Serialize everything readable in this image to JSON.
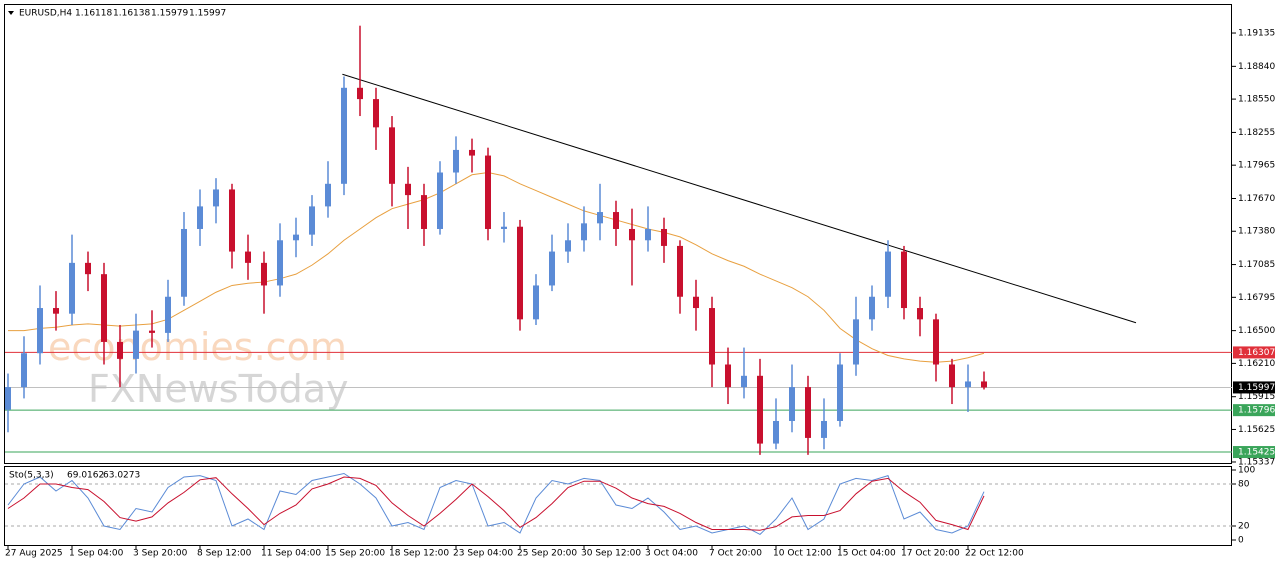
{
  "chart_data": {
    "type": "candlestick",
    "symbol": "EURUSD,H4",
    "ohlc": [
      1.16118,
      1.16138,
      1.15979,
      1.15997
    ],
    "categories": [
      "27 Aug 2025",
      null,
      null,
      null,
      "1 Sep 04:00",
      null,
      null,
      null,
      "3 Sep 20:00",
      null,
      null,
      null,
      "8 Sep 12:00",
      null,
      null,
      null,
      "11 Sep 04:00",
      null,
      null,
      null,
      "15 Sep 20:00",
      null,
      null,
      null,
      "18 Sep 12:00",
      null,
      null,
      null,
      "23 Sep 04:00",
      null,
      null,
      null,
      "25 Sep 20:00",
      null,
      null,
      null,
      "30 Sep 12:00",
      null,
      null,
      null,
      "3 Oct 04:00",
      null,
      null,
      null,
      "7 Oct 20:00",
      null,
      null,
      null,
      "10 Oct 12:00",
      null,
      null,
      null,
      "15 Oct 04:00",
      null,
      null,
      null,
      "17 Oct 20:00",
      null,
      null,
      null,
      "22 Oct 12:00",
      null
    ],
    "open": [
      1.158,
      1.16,
      1.163,
      1.167,
      1.1665,
      1.171,
      1.17,
      1.164,
      1.1625,
      1.165,
      1.1648,
      1.168,
      1.174,
      1.176,
      1.1775,
      1.172,
      1.171,
      1.169,
      1.173,
      1.1735,
      1.176,
      1.178,
      1.1865,
      1.1855,
      1.183,
      1.178,
      1.177,
      1.174,
      1.179,
      1.181,
      1.1805,
      1.174,
      1.1742,
      1.166,
      1.169,
      1.172,
      1.173,
      1.1745,
      1.1755,
      1.174,
      1.173,
      1.174,
      1.1725,
      1.168,
      1.167,
      1.162,
      1.16,
      1.161,
      1.155,
      1.157,
      1.16,
      1.1555,
      1.157,
      1.162,
      1.166,
      1.168,
      1.172,
      1.167,
      1.166,
      1.162,
      1.16,
      1.1605
    ],
    "high": [
      1.1612,
      1.1645,
      1.169,
      1.1685,
      1.1735,
      1.172,
      1.171,
      1.1655,
      1.1665,
      1.1668,
      1.1695,
      1.1755,
      1.1775,
      1.1785,
      1.178,
      1.1735,
      1.172,
      1.1745,
      1.175,
      1.177,
      1.18,
      1.1875,
      1.192,
      1.1865,
      1.184,
      1.1795,
      1.178,
      1.18,
      1.1822,
      1.182,
      1.1812,
      1.1755,
      1.1748,
      1.17,
      1.1735,
      1.1745,
      1.176,
      1.178,
      1.1765,
      1.1758,
      1.176,
      1.175,
      1.173,
      1.1695,
      1.168,
      1.1635,
      1.1635,
      1.1625,
      1.159,
      1.162,
      1.161,
      1.159,
      1.163,
      1.168,
      1.169,
      1.173,
      1.1725,
      1.168,
      1.1665,
      1.1625,
      1.162,
      1.16138
    ],
    "low": [
      1.156,
      1.159,
      1.162,
      1.165,
      1.1655,
      1.1685,
      1.162,
      1.16,
      1.1612,
      1.1635,
      1.164,
      1.1672,
      1.1725,
      1.1745,
      1.1705,
      1.1695,
      1.1665,
      1.168,
      1.1715,
      1.1725,
      1.175,
      1.177,
      1.184,
      1.181,
      1.176,
      1.174,
      1.1725,
      1.1735,
      1.178,
      1.179,
      1.173,
      1.1728,
      1.165,
      1.1655,
      1.1685,
      1.171,
      1.172,
      1.173,
      1.1725,
      1.169,
      1.172,
      1.171,
      1.1665,
      1.165,
      1.16,
      1.1585,
      1.159,
      1.154,
      1.1545,
      1.156,
      1.154,
      1.1545,
      1.1565,
      1.161,
      1.165,
      1.167,
      1.166,
      1.1645,
      1.1605,
      1.1585,
      1.1578,
      1.15979
    ],
    "close": [
      1.16,
      1.163,
      1.167,
      1.1665,
      1.171,
      1.17,
      1.164,
      1.1625,
      1.165,
      1.1648,
      1.168,
      1.174,
      1.176,
      1.1775,
      1.172,
      1.171,
      1.169,
      1.173,
      1.1735,
      1.176,
      1.178,
      1.1865,
      1.1855,
      1.183,
      1.178,
      1.177,
      1.174,
      1.179,
      1.181,
      1.1805,
      1.174,
      1.1742,
      1.166,
      1.169,
      1.172,
      1.173,
      1.1745,
      1.1755,
      1.174,
      1.173,
      1.174,
      1.1725,
      1.168,
      1.167,
      1.162,
      1.16,
      1.161,
      1.155,
      1.157,
      1.16,
      1.1555,
      1.157,
      1.162,
      1.166,
      1.168,
      1.172,
      1.167,
      1.166,
      1.162,
      1.16,
      1.1605,
      1.15997
    ],
    "up_color": "#5b8bd6",
    "down_color": "#c8102e",
    "ylim": [
      1.15328,
      1.19392
    ],
    "yticks": [
      1.19135,
      {
        "value": 1.1884,
        "label": "1.18840"
      },
      {
        "value": 1.1855,
        "label": "1.18550"
      },
      1.18255,
      1.17965,
      {
        "value": 1.1767,
        "label": "1.17670"
      },
      {
        "value": 1.1738,
        "label": "1.17380"
      },
      1.17085,
      1.16795,
      {
        "value": 1.165,
        "label": "1.16500"
      },
      {
        "value": 1.1621,
        "label": "1.16210"
      },
      1.15915,
      1.15625,
      1.15337
    ],
    "ma": {
      "color": "#e8a040",
      "values": [
        1.165,
        1.165,
        1.1652,
        1.1653,
        1.1655,
        1.1656,
        1.1655,
        1.1654,
        1.1655,
        1.1656,
        1.166,
        1.1668,
        1.1676,
        1.1684,
        1.169,
        1.1692,
        1.1693,
        1.1696,
        1.17,
        1.1708,
        1.1718,
        1.173,
        1.174,
        1.175,
        1.1758,
        1.1762,
        1.1766,
        1.1772,
        1.178,
        1.1788,
        1.179,
        1.1787,
        1.178,
        1.1774,
        1.1768,
        1.1762,
        1.1756,
        1.1752,
        1.1748,
        1.1744,
        1.174,
        1.1737,
        1.1733,
        1.1726,
        1.1718,
        1.1712,
        1.1707,
        1.17,
        1.1694,
        1.1688,
        1.168,
        1.1668,
        1.1652,
        1.1642,
        1.1634,
        1.1628,
        1.1625,
        1.1623,
        1.1622,
        1.1623,
        1.1626,
        1.163
      ]
    },
    "trendline": {
      "color": "#000000",
      "x": [
        20.9,
        70.5
      ],
      "values": [
        1.1877,
        1.1657
      ]
    },
    "levels": [
      {
        "value": 1.16307,
        "color": "#e0303a",
        "text_color": "#ffffff"
      },
      {
        "value": 1.15997,
        "color": "#000000",
        "line_color": "#c0c0c0",
        "text_color": "#ffffff"
      },
      {
        "value": 1.15796,
        "color": "#3aa55a",
        "text_color": "#ffffff"
      },
      {
        "value": 1.15425,
        "color": "#3aa55a",
        "text_color": "#ffffff"
      }
    ],
    "watermark": [
      "economies.com",
      "FXNewsToday"
    ],
    "stoch": {
      "label": "Sto(5,3,3)",
      "values": [
        69.0162,
        63.0273
      ],
      "ylim": [
        0,
        100
      ],
      "yticks": [
        100,
        80,
        20,
        0
      ],
      "main": {
        "color": "#5b8bd6",
        "values": [
          50,
          80,
          90,
          70,
          85,
          60,
          20,
          15,
          45,
          40,
          75,
          90,
          92,
          85,
          20,
          30,
          15,
          70,
          65,
          85,
          90,
          95,
          80,
          60,
          20,
          25,
          15,
          75,
          85,
          80,
          20,
          25,
          10,
          60,
          85,
          80,
          88,
          85,
          50,
          45,
          60,
          40,
          15,
          20,
          10,
          15,
          20,
          8,
          30,
          60,
          15,
          30,
          80,
          88,
          85,
          92,
          30,
          40,
          15,
          10,
          20,
          69.0162
        ]
      },
      "signal": {
        "color": "#c8102e",
        "values": [
          45,
          60,
          80,
          80,
          75,
          72,
          55,
          32,
          27,
          33,
          53,
          68,
          86,
          89,
          66,
          45,
          22,
          38,
          50,
          73,
          80,
          90,
          88,
          78,
          53,
          35,
          20,
          38,
          58,
          80,
          62,
          42,
          18,
          32,
          52,
          75,
          84,
          84,
          74,
          60,
          52,
          48,
          38,
          25,
          15,
          15,
          15,
          14,
          19,
          33,
          35,
          35,
          42,
          66,
          84,
          88,
          69,
          54,
          28,
          22,
          15,
          63.0273
        ]
      }
    }
  }
}
